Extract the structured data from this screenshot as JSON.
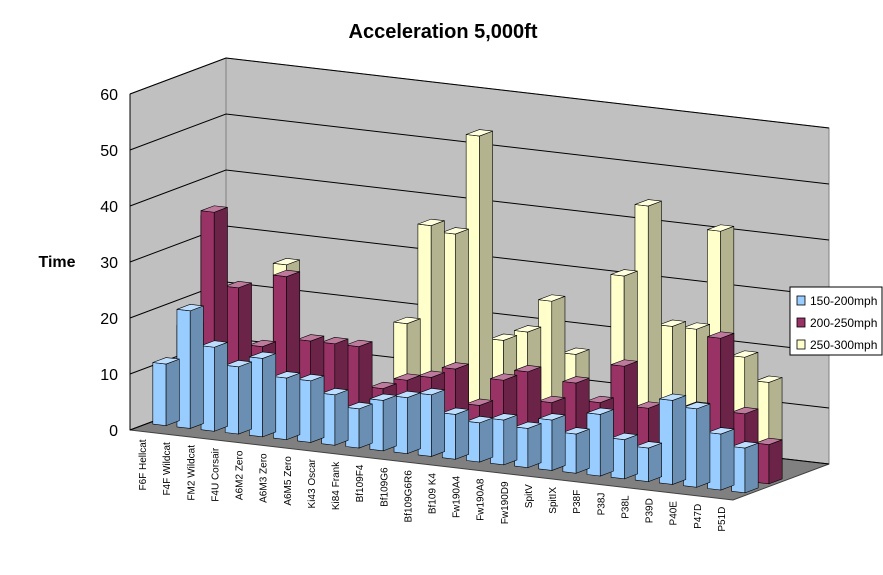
{
  "chart_data": {
    "type": "bar",
    "title": "Acceleration 5,000ft",
    "xlabel": "",
    "ylabel": "Time",
    "ylim": [
      0,
      60
    ],
    "yticks": [
      0,
      10,
      20,
      30,
      40,
      50,
      60
    ],
    "grid": true,
    "legend_position": "right",
    "categories": [
      "F6F Hellcat",
      "F4F Wildcat",
      "FM2 Wildcat",
      "F4U Corsair",
      "A6M2 Zero",
      "A6M3 Zero",
      "A6M5 Zero",
      "Ki43 Oscar",
      "Ki84 Frank",
      "Bf109F4",
      "Bf109G6",
      "Bf109G6R6",
      "Bf109 K4",
      "Fw190A4",
      "Fw190A8",
      "Fw190D9",
      "SpitV",
      "SpitIX",
      "P38F",
      "P38J",
      "P38L",
      "P39D",
      "P40E",
      "P47D",
      "P51D"
    ],
    "series": [
      {
        "name": "150-200mph",
        "color": "#99ccff",
        "values": [
          11,
          21,
          15,
          12,
          14,
          11,
          11,
          9,
          7,
          9,
          10,
          11,
          8,
          7,
          8,
          7,
          9,
          7,
          11,
          7,
          6,
          15,
          14,
          10,
          8
        ]
      },
      {
        "name": "200-250mph",
        "color": "#993366",
        "values": [
          16,
          37,
          24,
          14,
          27,
          16,
          16,
          16,
          9,
          11,
          12,
          14,
          8,
          13,
          15,
          10,
          14,
          11,
          18,
          11,
          11,
          12,
          25,
          12,
          7
        ]
      },
      {
        "name": "250-300mph",
        "color": "#ffffcc",
        "values": [
          34,
          0,
          0,
          27,
          0,
          0,
          0,
          0,
          19,
          37,
          36,
          54,
          18,
          20,
          26,
          17,
          0,
          32,
          45,
          24,
          24,
          42,
          20,
          16,
          0
        ]
      }
    ]
  }
}
